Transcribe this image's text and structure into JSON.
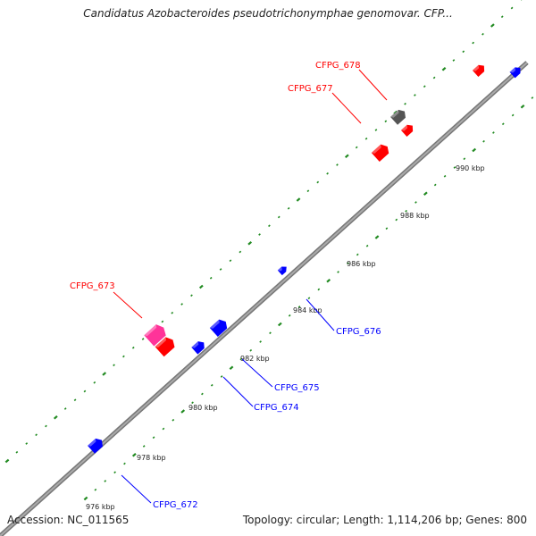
{
  "title": "Candidatus Azobacteroides pseudotrichonymphae genomovar. CFP...",
  "footer": {
    "accession": "Accession: NC_011565",
    "topology": "Topology: circular; Length: 1,114,206 bp; Genes: 800"
  },
  "scale_labels": [
    "976 kbp",
    "978 kbp",
    "980 kbp",
    "982 kbp",
    "984 kbp",
    "986 kbp",
    "988 kbp",
    "990 kbp"
  ],
  "gene_labels": {
    "forward": [
      "CFPG_673",
      "CFPG_677",
      "CFPG_678"
    ],
    "reverse": [
      "CFPG_672",
      "CFPG_674",
      "CFPG_675",
      "CFPG_676"
    ]
  },
  "colors": {
    "forward": "#ff0000",
    "reverse": "#0000ff",
    "rna": "#ff3399",
    "other": "#555555",
    "backbone": "#888888",
    "ticks": "#228b22"
  }
}
